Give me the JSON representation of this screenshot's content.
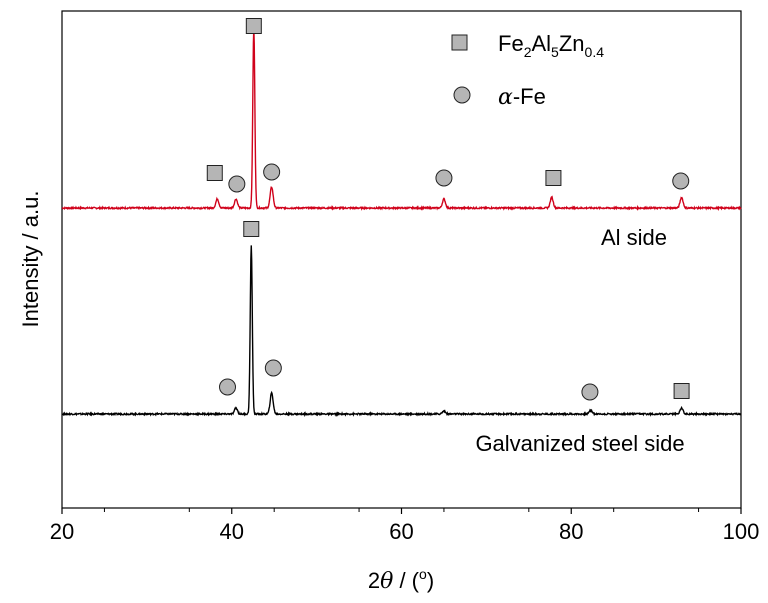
{
  "chart_data": {
    "type": "line",
    "xlabel_prefix": "2",
    "xlabel_theta": "θ",
    "xlabel_unit": " / (",
    "xlabel_degree": "o",
    "xlabel_close": ")",
    "ylabel": "Intensity / a.u.",
    "xlim": [
      20,
      100
    ],
    "xticks": [
      "20",
      "40",
      "60",
      "80",
      "100"
    ],
    "grid": false,
    "legend_position": "top-right",
    "legend": {
      "square": {
        "base": "Fe",
        "sub1": "2",
        "mid": "Al",
        "sub2": "5",
        "mid2": "Zn",
        "sub3": "0.4"
      },
      "circle": {
        "greek": "α",
        "rest": "-Fe"
      }
    },
    "series": [
      {
        "name": "Al side",
        "color": "#d0021b",
        "peaks": [
          [
            38.3,
            0.3
          ],
          [
            40.5,
            0.3
          ],
          [
            42.6,
            6.0
          ],
          [
            44.7,
            0.7
          ],
          [
            65.0,
            0.3
          ],
          [
            77.7,
            0.35
          ],
          [
            93.0,
            0.35
          ]
        ],
        "markers": [
          {
            "shape": "square",
            "x": 42.6
          },
          {
            "shape": "square",
            "x": 38.0
          },
          {
            "shape": "circle",
            "x": 40.6
          },
          {
            "shape": "circle",
            "x": 44.7
          },
          {
            "shape": "circle",
            "x": 65.0
          },
          {
            "shape": "square",
            "x": 77.9
          },
          {
            "shape": "circle",
            "x": 92.9
          }
        ]
      },
      {
        "name": "Galvanized steel side",
        "color": "#000000",
        "peaks": [
          [
            40.5,
            0.2
          ],
          [
            42.3,
            5.6
          ],
          [
            44.7,
            0.7
          ],
          [
            65.0,
            0.1
          ],
          [
            82.3,
            0.12
          ],
          [
            93.0,
            0.2
          ]
        ],
        "markers": [
          {
            "shape": "square",
            "x": 42.3
          },
          {
            "shape": "circle",
            "x": 39.5
          },
          {
            "shape": "circle",
            "x": 44.9
          },
          {
            "shape": "circle",
            "x": 82.2
          },
          {
            "shape": "square",
            "x": 93.0
          }
        ]
      }
    ]
  }
}
